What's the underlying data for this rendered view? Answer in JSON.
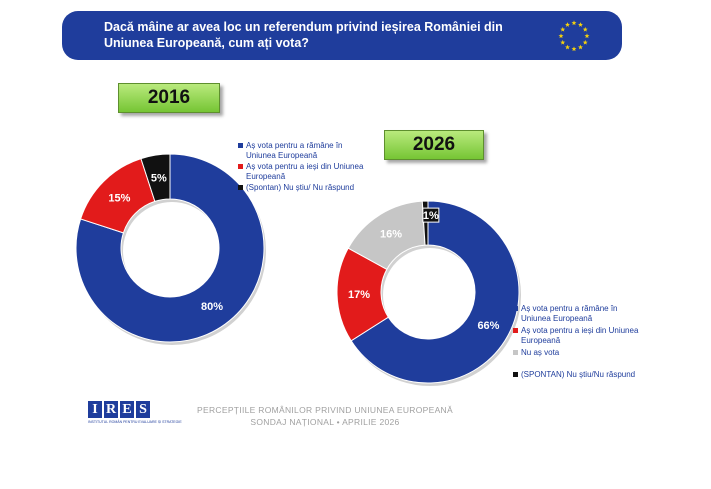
{
  "header": {
    "question": "Dacă mâine ar avea loc un referendum privind ieșirea României din Uniunea Europeană, cum ați vota?",
    "flag_icon": "eu-flag-icon",
    "background_color": "#1f3d9c"
  },
  "chart_data": [
    {
      "type": "pie",
      "title": "2016",
      "categories": [
        "Aș vota pentru a rămâne în Uniunea Europeană",
        "Aș vota pentru a ieși din Uniunea Europeană",
        "(Spontan) Nu știu/ Nu răspund"
      ],
      "values": [
        80,
        15,
        5
      ],
      "labels": [
        "80%",
        "15%",
        "5%"
      ],
      "colors": [
        "#1f3d9c",
        "#e21b1b",
        "#111111"
      ],
      "label_colors": [
        "#ffffff",
        "#ffffff",
        "#ffffff"
      ],
      "legend": "right"
    },
    {
      "type": "pie",
      "title": "2026",
      "categories": [
        "Aș vota pentru a rămâne în Uniunea Europeană",
        "Aș vota pentru a ieși din Uniunea Europeană",
        "Nu aș vota",
        "(SPONTAN) Nu știu/Nu răspund"
      ],
      "values": [
        66,
        17,
        16,
        1
      ],
      "labels": [
        "66%",
        "17%",
        "16%",
        "1%"
      ],
      "colors": [
        "#1f3d9c",
        "#e21b1b",
        "#c6c6c6",
        "#111111"
      ],
      "label_colors": [
        "#ffffff",
        "#ffffff",
        "#ffffff",
        "#ffffff"
      ],
      "legend": "right"
    }
  ],
  "logo": {
    "letters": [
      "I",
      "R",
      "E",
      "S"
    ],
    "tagline": "INSTITUTUL ROMÂN PENTRU EVALUARE ȘI STRATEGIE"
  },
  "footer": {
    "line1": "PERCEPȚIILE ROMÂNILOR PRIVIND UNIUNEA EUROPEANĂ",
    "line2": "SONDAJ NAȚIONAL • APRILIE 2026"
  }
}
